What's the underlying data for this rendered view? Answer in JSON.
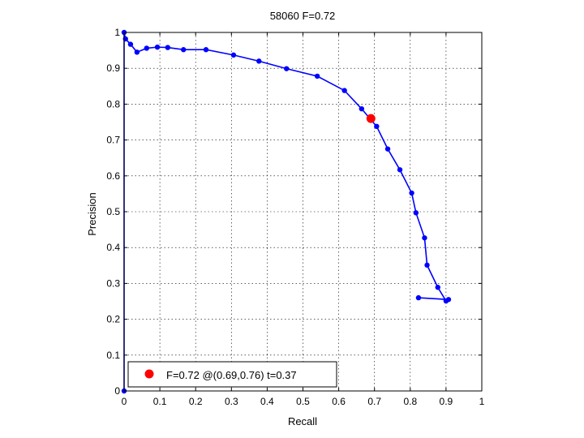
{
  "chart_data": {
    "type": "line",
    "title": "58060 F=0.72",
    "xlabel": "Recall",
    "ylabel": "Precision",
    "xlim": [
      0,
      1
    ],
    "ylim": [
      0,
      1
    ],
    "xticks": [
      0,
      0.1,
      0.2,
      0.3,
      0.4,
      0.5,
      0.6,
      0.7,
      0.8,
      0.9,
      1
    ],
    "xtick_labels": [
      "0",
      "0.1",
      "0.2",
      "0.3",
      "0.4",
      "0.5",
      "0.6",
      "0.7",
      "0.8",
      "0.9",
      "1"
    ],
    "yticks": [
      0,
      0.1,
      0.2,
      0.3,
      0.4,
      0.5,
      0.6,
      0.7,
      0.8,
      0.9,
      1
    ],
    "ytick_labels": [
      "0",
      "0.1",
      "0.2",
      "0.3",
      "0.4",
      "0.5",
      "0.6",
      "0.7",
      "0.8",
      "0.9",
      "1"
    ],
    "grid": true,
    "legend_position": "bottom-left",
    "series": [
      {
        "color": "#0000ff",
        "x": [
          0.0,
          0.0,
          0.004,
          0.018,
          0.036,
          0.063,
          0.093,
          0.122,
          0.166,
          0.229,
          0.306,
          0.377,
          0.454,
          0.54,
          0.616,
          0.664,
          0.706,
          0.737,
          0.771,
          0.804,
          0.816,
          0.84,
          0.847,
          0.877,
          0.9,
          0.907,
          0.823
        ],
        "y": [
          0.0,
          1.0,
          0.982,
          0.967,
          0.945,
          0.956,
          0.959,
          0.958,
          0.952,
          0.952,
          0.937,
          0.92,
          0.899,
          0.878,
          0.838,
          0.787,
          0.738,
          0.675,
          0.617,
          0.552,
          0.497,
          0.427,
          0.351,
          0.289,
          0.251,
          0.255,
          0.26
        ]
      }
    ],
    "best_point": {
      "recall": 0.69,
      "precision": 0.76,
      "color": "#ff0000"
    },
    "legend": {
      "text": "F=0.72 @(0.69,0.76) t=0.37"
    }
  }
}
